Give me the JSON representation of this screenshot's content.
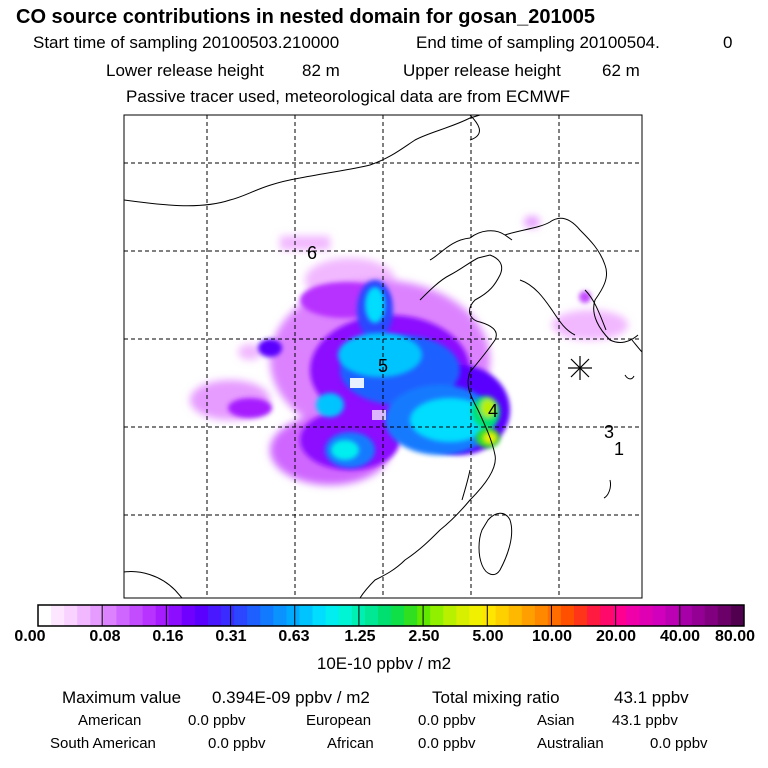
{
  "header": {
    "title": "CO  source contributions in nested domain for gosan_201005",
    "start_label": "Start time of sampling 20100503.210000",
    "end_label": "End time of sampling 20100504.",
    "end_value": "0",
    "lower_label": "Lower release height",
    "lower_value": "82 m",
    "upper_label": "Upper release height",
    "upper_value": "62 m",
    "tracer_line": "Passive tracer used, meteorological data are from ECMWF"
  },
  "map": {
    "region_labels": [
      "6",
      "5",
      "4",
      "3",
      "1"
    ],
    "receptor": "gosan (asterisk marker)"
  },
  "colorbar": {
    "labels": [
      "0.00",
      "0.08",
      "0.16",
      "0.31",
      "0.63",
      "1.25",
      "2.50",
      "5.00",
      "10.00",
      "20.00",
      "40.00",
      "80.00"
    ],
    "unit": "10E-10 ppbv / m2",
    "colors": [
      "#ffffff",
      "#fde6ff",
      "#f9d2ff",
      "#f1b8ff",
      "#e69bff",
      "#dc82ff",
      "#cf66ff",
      "#c44cff",
      "#b833ff",
      "#a61cff",
      "#8c0dff",
      "#7000ff",
      "#5a00ff",
      "#4a18ff",
      "#3a2cff",
      "#2c46ff",
      "#1e60ff",
      "#127aff",
      "#0a92ff",
      "#00aaff",
      "#00c4ff",
      "#00ddff",
      "#00eef0",
      "#00f5d5",
      "#00f0b4",
      "#00e894",
      "#00e070",
      "#10e048",
      "#30e020",
      "#60e800",
      "#90f000",
      "#b8f000",
      "#d8f000",
      "#f0f000",
      "#ffe600",
      "#ffd000",
      "#ffb800",
      "#ffa000",
      "#ff8800",
      "#ff6c00",
      "#ff5000",
      "#ff3418",
      "#ff1a40",
      "#ff0a6a",
      "#ff0090",
      "#f000a8",
      "#e000b4",
      "#d000bc",
      "#bc00b4",
      "#a800a8",
      "#940094",
      "#800080",
      "#6a0068",
      "#50004e"
    ]
  },
  "stats": {
    "max_label": "Maximum value",
    "max_value": "0.394E-09 ppbv / m2",
    "total_label": "Total mixing ratio",
    "total_value": "43.1 ppbv",
    "regions": [
      {
        "name": "American",
        "value": "0.0 ppbv"
      },
      {
        "name": "European",
        "value": "0.0 ppbv"
      },
      {
        "name": "Asian",
        "value": "43.1 ppbv"
      },
      {
        "name": "South American",
        "value": "0.0 ppbv"
      },
      {
        "name": "African",
        "value": "0.0 ppbv"
      },
      {
        "name": "Australian",
        "value": "0.0 ppbv"
      }
    ]
  }
}
